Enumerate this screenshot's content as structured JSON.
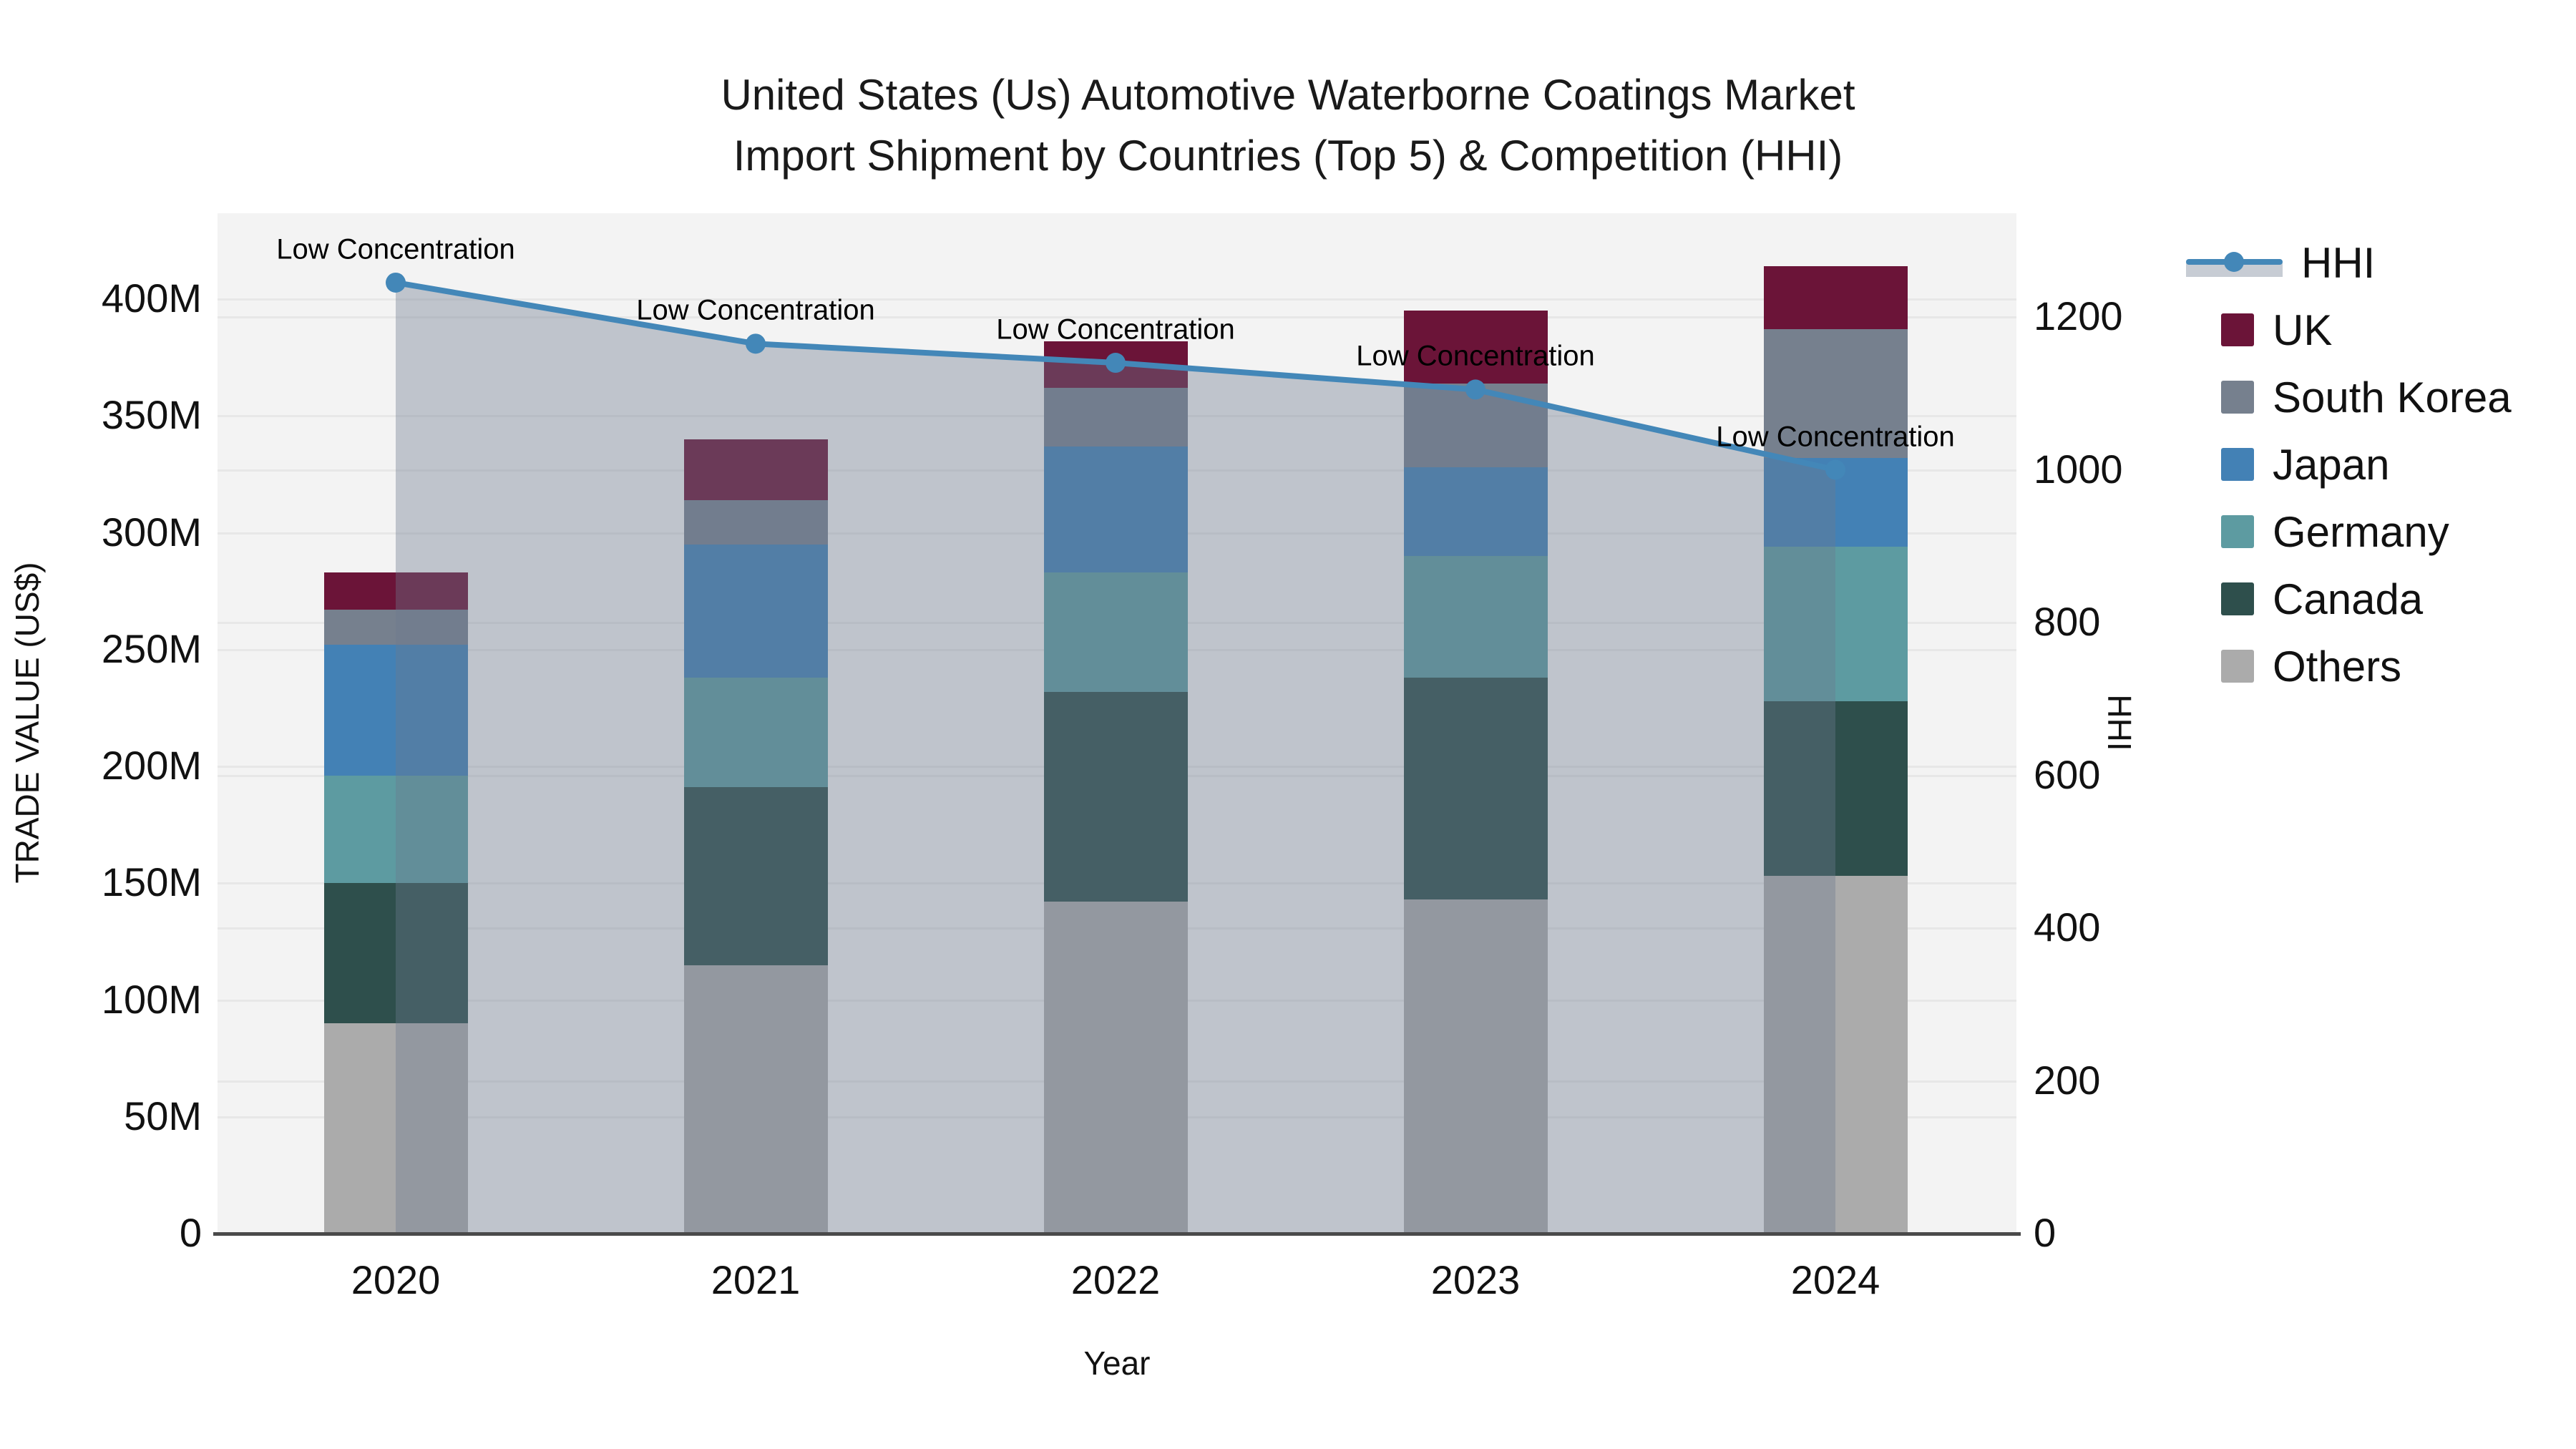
{
  "title": {
    "line1": "United States (Us) Automotive Waterborne Coatings Market",
    "line2": "Import Shipment by Countries (Top 5) & Competition (HHI)"
  },
  "chart_data": {
    "type": "bar",
    "subtype": "stacked-bar-with-line",
    "categories": [
      "2020",
      "2021",
      "2022",
      "2023",
      "2024"
    ],
    "stack_order_bottom_to_top": [
      "Others",
      "Canada",
      "Germany",
      "Japan",
      "South Korea",
      "UK"
    ],
    "series": [
      {
        "name": "Others",
        "color": "#ababab",
        "values": [
          90,
          115,
          142,
          143,
          153
        ]
      },
      {
        "name": "Canada",
        "color": "#2e4f4c",
        "values": [
          60,
          76,
          90,
          95,
          75
        ]
      },
      {
        "name": "Germany",
        "color": "#5d9ba1",
        "values": [
          46,
          47,
          51,
          52,
          66
        ]
      },
      {
        "name": "Japan",
        "color": "#4381b5",
        "values": [
          56,
          57,
          54,
          38,
          38
        ]
      },
      {
        "name": "South Korea",
        "color": "#76808e",
        "values": [
          15,
          19,
          25,
          36,
          55
        ]
      },
      {
        "name": "UK",
        "color": "#6b1438",
        "values": [
          16,
          26,
          20,
          31,
          27
        ]
      }
    ],
    "bar_totals_musd": [
      283,
      340,
      382,
      395,
      414
    ],
    "line_series": {
      "name": "HHI",
      "axis": "right",
      "color": "#4387b8",
      "fill_color": "rgba(108,120,142,0.38)",
      "values": [
        1245,
        1165,
        1140,
        1105,
        1000
      ]
    },
    "annotations": [
      {
        "text": "Low Concentration",
        "category": "2020"
      },
      {
        "text": "Low Concentration",
        "category": "2021"
      },
      {
        "text": "Low Concentration",
        "category": "2022"
      },
      {
        "text": "Low Concentration",
        "category": "2023"
      },
      {
        "text": "Low Concentration",
        "category": "2024"
      }
    ],
    "left_axis": {
      "title": "TRADE VALUE (US$)",
      "tick_labels": [
        "0",
        "50M",
        "100M",
        "150M",
        "200M",
        "250M",
        "300M",
        "350M",
        "400M"
      ],
      "tick_values": [
        0,
        50,
        100,
        150,
        200,
        250,
        300,
        350,
        400
      ],
      "range": [
        0,
        436
      ]
    },
    "right_axis": {
      "title": "HHI",
      "tick_labels": [
        "0",
        "200",
        "400",
        "600",
        "800",
        "1000",
        "1200"
      ],
      "tick_values": [
        0,
        200,
        400,
        600,
        800,
        1000,
        1200
      ],
      "range": [
        0,
        1335
      ]
    },
    "x_axis": {
      "title": "Year"
    },
    "grid": true,
    "legend_position": "right"
  },
  "legend": {
    "items": [
      {
        "label": "HHI",
        "type": "line",
        "color": "#4387b8"
      },
      {
        "label": "UK",
        "type": "box",
        "color": "#6b1438"
      },
      {
        "label": "South Korea",
        "type": "box",
        "color": "#76808e"
      },
      {
        "label": "Japan",
        "type": "box",
        "color": "#4381b5"
      },
      {
        "label": "Germany",
        "type": "box",
        "color": "#5d9ba1"
      },
      {
        "label": "Canada",
        "type": "box",
        "color": "#2e4f4c"
      },
      {
        "label": "Others",
        "type": "box",
        "color": "#ababab"
      }
    ]
  },
  "colors": {
    "plot_background": "#f3f3f3",
    "gridline": "#e7e7e7",
    "axis_line": "#4a4a4a",
    "text": "#111111"
  }
}
